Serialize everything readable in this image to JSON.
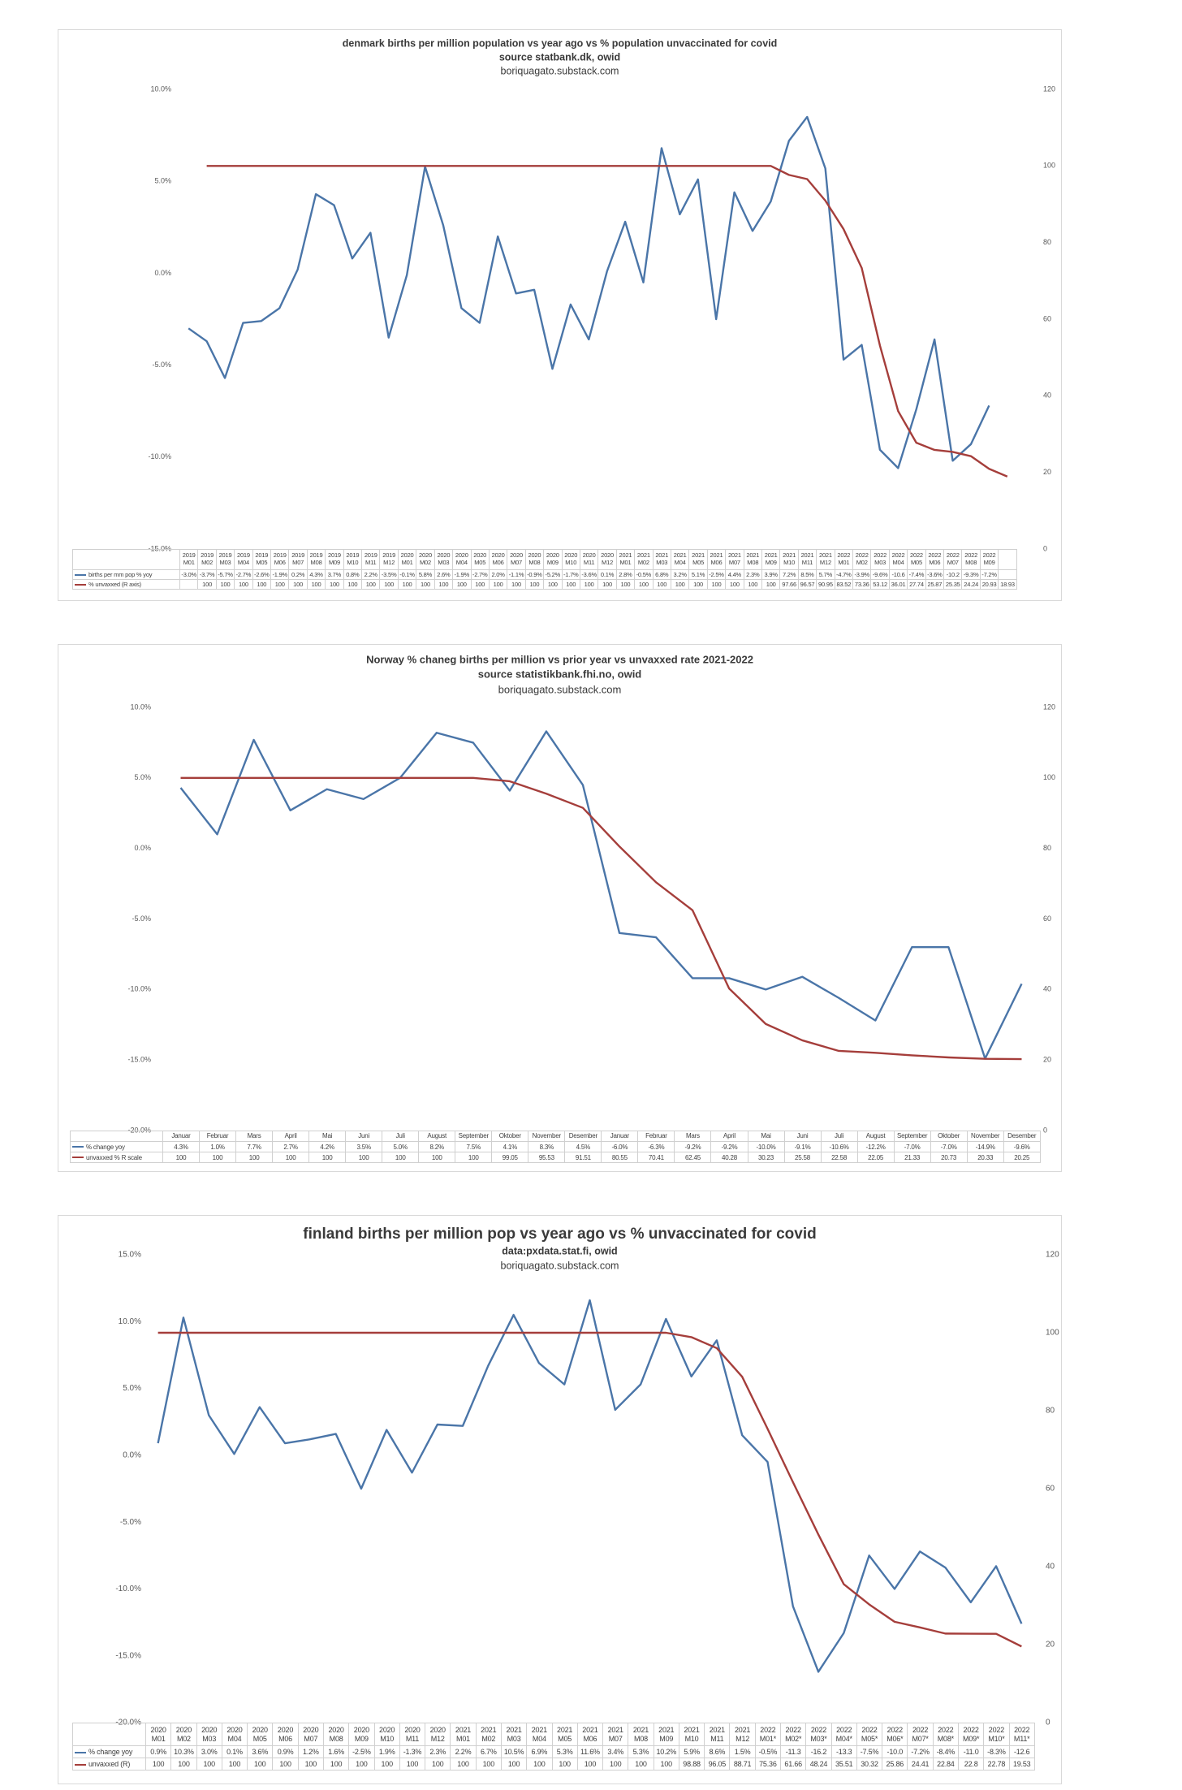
{
  "chart_data": [
    {
      "type": "line",
      "title": "denmark births per million population vs year ago vs % population unvaccinated for covid",
      "source": "source statbank.dk, owid",
      "credit": "boriquagato.substack.com",
      "categories": [
        "2019 M01",
        "2019 M02",
        "2019 M03",
        "2019 M04",
        "2019 M05",
        "2019 M06",
        "2019 M07",
        "2019 M08",
        "2019 M09",
        "2019 M10",
        "2019 M11",
        "2019 M12",
        "2020 M01",
        "2020 M02",
        "2020 M03",
        "2020 M04",
        "2020 M05",
        "2020 M06",
        "2020 M07",
        "2020 M08",
        "2020 M09",
        "2020 M10",
        "2020 M11",
        "2020 M12",
        "2021 M01",
        "2021 M02",
        "2021 M03",
        "2021 M04",
        "2021 M05",
        "2021 M06",
        "2021 M07",
        "2021 M08",
        "2021 M09",
        "2021 M10",
        "2021 M11",
        "2021 M12",
        "2022 M01",
        "2022 M02",
        "2022 M03",
        "2022 M04",
        "2022 M05",
        "2022 M06",
        "2022 M07",
        "2022 M08",
        "2022 M09",
        null
      ],
      "series": [
        {
          "name": "births per mm pop % yoy",
          "color": "#4a75a8",
          "values": [
            -3.0,
            -3.7,
            -5.7,
            -2.7,
            -2.6,
            -1.9,
            0.2,
            4.3,
            3.7,
            0.8,
            2.2,
            -3.5,
            -0.1,
            5.8,
            2.6,
            -1.9,
            -2.7,
            2.0,
            -1.1,
            -0.9,
            -5.2,
            -1.7,
            -3.6,
            0.1,
            2.8,
            -0.5,
            6.8,
            3.2,
            5.1,
            -2.5,
            4.4,
            2.3,
            3.9,
            7.2,
            8.5,
            5.7,
            -4.7,
            -3.9,
            -9.6,
            -10.6,
            -7.4,
            -3.6,
            -10.2,
            -9.3,
            -7.2,
            null
          ],
          "value_labels": [
            "-3.0%",
            "-3.7%",
            "-5.7%",
            "-2.7%",
            "-2.6%",
            "-1.9%",
            "0.2%",
            "4.3%",
            "3.7%",
            "0.8%",
            "2.2%",
            "-3.5%",
            "-0.1%",
            "5.8%",
            "2.6%",
            "-1.9%",
            "-2.7%",
            "2.0%",
            "-1.1%",
            "-0.9%",
            "-5.2%",
            "-1.7%",
            "-3.6%",
            "0.1%",
            "2.8%",
            "-0.5%",
            "6.8%",
            "3.2%",
            "5.1%",
            "-2.5%",
            "4.4%",
            "2.3%",
            "3.9%",
            "7.2%",
            "8.5%",
            "5.7%",
            "-4.7%",
            "-3.9%",
            "-9.6%",
            "-10.6",
            "-7.4%",
            "-3.6%",
            "-10.2",
            "-9.3%",
            "-7.2%",
            null
          ]
        },
        {
          "name": "% unvaxxed (R axis)",
          "color": "#a53e3b",
          "axis": "y2",
          "values": [
            null,
            100,
            100,
            100,
            100,
            100,
            100,
            100,
            100,
            100,
            100,
            100,
            100,
            100,
            100,
            100,
            100,
            100,
            100,
            100,
            100,
            100,
            100,
            100,
            100,
            100,
            100,
            100,
            100,
            100,
            100,
            100,
            100,
            97.66,
            96.57,
            90.95,
            83.52,
            73.36,
            53.12,
            36.01,
            27.74,
            25.87,
            25.35,
            24.24,
            20.93,
            18.93
          ]
        }
      ],
      "ylim": [
        -15,
        10
      ],
      "yticks": [
        {
          "value": -15,
          "label": "-15.0%"
        },
        {
          "value": -10,
          "label": "-10.0%"
        },
        {
          "value": -5,
          "label": "-5.0%"
        },
        {
          "value": 0,
          "label": "0.0%"
        },
        {
          "value": 5,
          "label": "5.0%"
        },
        {
          "value": 10,
          "label": "10.0%"
        }
      ],
      "y2lim": [
        0,
        120
      ],
      "y2ticks": [
        0,
        20,
        40,
        60,
        80,
        100,
        120
      ],
      "grid": false
    },
    {
      "type": "line",
      "title": "Norway % chaneg births per million vs prior year vs unvaxxed rate 2021-2022",
      "source": "source statistikbank.fhi.no, owid",
      "credit": "boriquagato.substack.com",
      "categories": [
        "Januar",
        "Februar",
        "Mars",
        "April",
        "Mai",
        "Juni",
        "Juli",
        "August",
        "September",
        "Oktober",
        "November",
        "Desember",
        "Januar",
        "Februar",
        "Mars",
        "April",
        "Mai",
        "Juni",
        "Juli",
        "August",
        "September",
        "Oktober",
        "November",
        "Desember"
      ],
      "series": [
        {
          "name": "% change yoy",
          "color": "#4a75a8",
          "values": [
            4.3,
            1.0,
            7.7,
            2.7,
            4.2,
            3.5,
            5.0,
            8.2,
            7.5,
            4.1,
            8.3,
            4.5,
            -6.0,
            -6.3,
            -9.2,
            -9.2,
            -10.0,
            -9.1,
            -10.6,
            -12.2,
            -7.0,
            -7.0,
            -14.9,
            -9.6
          ],
          "value_labels": [
            "4.3%",
            "1.0%",
            "7.7%",
            "2.7%",
            "4.2%",
            "3.5%",
            "5.0%",
            "8.2%",
            "7.5%",
            "4.1%",
            "8.3%",
            "4.5%",
            "-6.0%",
            "-6.3%",
            "-9.2%",
            "-9.2%",
            "-10.0%",
            "-9.1%",
            "-10.6%",
            "-12.2%",
            "-7.0%",
            "-7.0%",
            "-14.9%",
            "-9.6%"
          ]
        },
        {
          "name": "unvaxxed % R scale",
          "color": "#a53e3b",
          "axis": "y2",
          "values": [
            100,
            100,
            100,
            100,
            100,
            100,
            100,
            100,
            100,
            99.05,
            95.53,
            91.51,
            80.55,
            70.41,
            62.45,
            40.28,
            30.23,
            25.58,
            22.58,
            22.05,
            21.33,
            20.73,
            20.33,
            20.25
          ]
        }
      ],
      "ylim": [
        -20,
        10
      ],
      "yticks": [
        {
          "value": -20,
          "label": "-20.0%"
        },
        {
          "value": -15,
          "label": "-15.0%"
        },
        {
          "value": -10,
          "label": "-10.0%"
        },
        {
          "value": -5,
          "label": "-5.0%"
        },
        {
          "value": 0,
          "label": "0.0%"
        },
        {
          "value": 5,
          "label": "5.0%"
        },
        {
          "value": 10,
          "label": "10.0%"
        }
      ],
      "y2lim": [
        0,
        120
      ],
      "y2ticks": [
        0,
        20,
        40,
        60,
        80,
        100,
        120
      ],
      "grid": false
    },
    {
      "type": "line",
      "title": "finland births per million pop vs year ago vs % unvaccinated for covid",
      "source": "data:pxdata.stat.fi, owid",
      "credit": "boriquagato.substack.com",
      "categories": [
        "2020 M01",
        "2020 M02",
        "2020 M03",
        "2020 M04",
        "2020 M05",
        "2020 M06",
        "2020 M07",
        "2020 M08",
        "2020 M09",
        "2020 M10",
        "2020 M11",
        "2020 M12",
        "2021 M01",
        "2021 M02",
        "2021 M03",
        "2021 M04",
        "2021 M05",
        "2021 M06",
        "2021 M07",
        "2021 M08",
        "2021 M09",
        "2021 M10",
        "2021 M11",
        "2021 M12",
        "2022 M01*",
        "2022 M02*",
        "2022 M03*",
        "2022 M04*",
        "2022 M05*",
        "2022 M06*",
        "2022 M07*",
        "2022 M08*",
        "2022 M09*",
        "2022 M10*",
        "2022 M11*"
      ],
      "series": [
        {
          "name": "% change yoy",
          "color": "#4a75a8",
          "values": [
            0.9,
            10.3,
            3.0,
            0.1,
            3.6,
            0.9,
            1.2,
            1.6,
            -2.5,
            1.9,
            -1.3,
            2.3,
            2.2,
            6.7,
            10.5,
            6.9,
            5.3,
            11.6,
            3.4,
            5.3,
            10.2,
            5.9,
            8.6,
            1.5,
            -0.5,
            -11.3,
            -16.2,
            -13.3,
            -7.5,
            -10.0,
            -7.2,
            -8.4,
            -11.0,
            -8.3,
            -12.6
          ],
          "value_labels": [
            "0.9%",
            "10.3%",
            "3.0%",
            "0.1%",
            "3.6%",
            "0.9%",
            "1.2%",
            "1.6%",
            "-2.5%",
            "1.9%",
            "-1.3%",
            "2.3%",
            "2.2%",
            "6.7%",
            "10.5%",
            "6.9%",
            "5.3%",
            "11.6%",
            "3.4%",
            "5.3%",
            "10.2%",
            "5.9%",
            "8.6%",
            "1.5%",
            "-0.5%",
            "-11.3",
            "-16.2",
            "-13.3",
            "-7.5%",
            "-10.0",
            "-7.2%",
            "-8.4%",
            "-11.0",
            "-8.3%",
            "-12.6"
          ]
        },
        {
          "name": "unvaxxed (R)",
          "color": "#a53e3b",
          "axis": "y2",
          "values": [
            100,
            100,
            100,
            100,
            100,
            100,
            100,
            100,
            100,
            100,
            100,
            100,
            100,
            100,
            100,
            100,
            100,
            100,
            100,
            100,
            100,
            98.88,
            96.05,
            88.71,
            75.36,
            61.66,
            48.24,
            35.51,
            30.32,
            25.86,
            24.41,
            22.84,
            22.8,
            22.78,
            19.53
          ]
        }
      ],
      "ylim": [
        -20,
        15
      ],
      "yticks": [
        {
          "value": -20,
          "label": "-20.0%"
        },
        {
          "value": -15,
          "label": "-15.0%"
        },
        {
          "value": -10,
          "label": "-10.0%"
        },
        {
          "value": -5,
          "label": "-5.0%"
        },
        {
          "value": 0,
          "label": "0.0%"
        },
        {
          "value": 5,
          "label": "5.0%"
        },
        {
          "value": 10,
          "label": "10.0%"
        },
        {
          "value": 15,
          "label": "15.0%"
        }
      ],
      "y2lim": [
        0,
        120
      ],
      "y2ticks": [
        0,
        20,
        40,
        60,
        80,
        100,
        120
      ],
      "grid": false
    }
  ]
}
